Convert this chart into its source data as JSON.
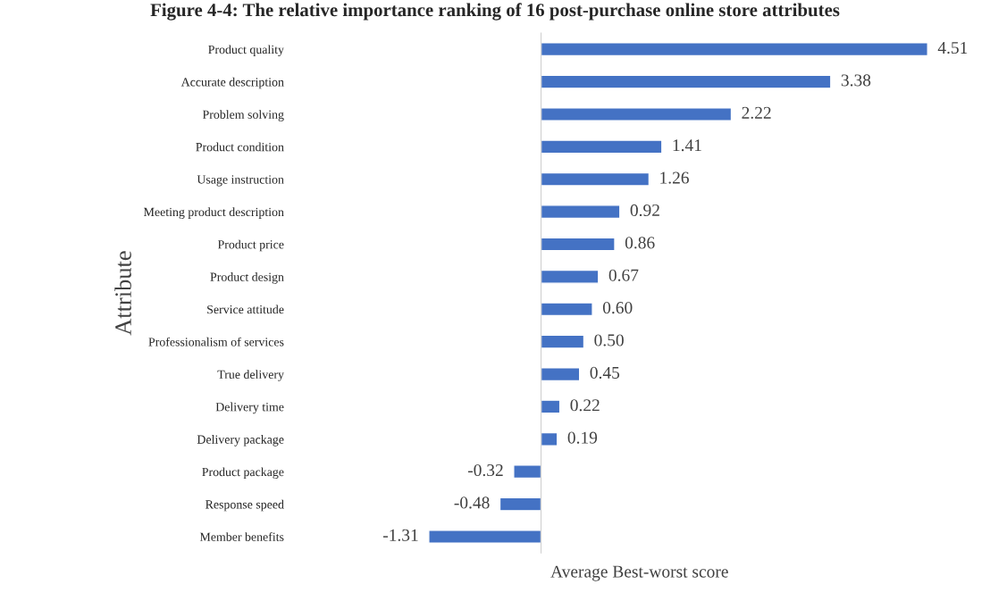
{
  "chart_data": {
    "type": "bar",
    "orientation": "horizontal",
    "title": "Figure 4-4: The relative importance ranking of 16 post-purchase online store attributes",
    "xlabel": "Average Best-worst score",
    "ylabel": "Attribute",
    "categories": [
      "Product quality",
      "Accurate description",
      "Problem solving",
      "Product condition",
      "Usage instruction",
      "Meeting product description",
      "Product price",
      "Product design",
      "Service attitude",
      "Professionalism of services",
      "True delivery",
      "Delivery time",
      "Delivery package",
      "Product package",
      "Response speed",
      "Member benefits"
    ],
    "values": [
      4.51,
      3.38,
      2.22,
      1.41,
      1.26,
      0.92,
      0.86,
      0.67,
      0.6,
      0.5,
      0.45,
      0.22,
      0.19,
      -0.32,
      -0.48,
      -1.31
    ],
    "value_labels": [
      "4.51",
      "3.38",
      "2.22",
      "1.41",
      "1.26",
      "0.92",
      "0.86",
      "0.67",
      "0.60",
      "0.50",
      "0.45",
      "0.22",
      "0.19",
      "-0.32",
      "-0.48",
      "-1.31"
    ],
    "color": "#4472c4",
    "tick_labels": "y",
    "grid": false,
    "legend": false
  }
}
